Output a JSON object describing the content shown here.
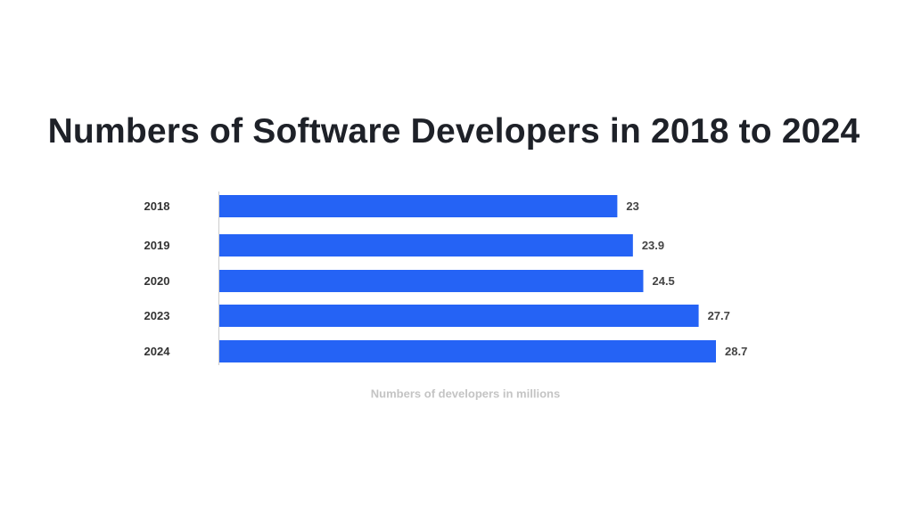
{
  "chart_data": {
    "type": "bar",
    "orientation": "horizontal",
    "title": "Numbers of Software Developers in 2018 to 2024",
    "xlabel": "Numbers of developers in millions",
    "ylabel": "",
    "categories": [
      "2018",
      "2019",
      "2020",
      "2023",
      "2024"
    ],
    "values": [
      23,
      23.9,
      24.5,
      27.7,
      28.7
    ],
    "value_labels": [
      "23",
      "23.9",
      "24.5",
      "27.7",
      "28.7"
    ],
    "xlim": [
      0,
      28.7
    ],
    "grid": false,
    "legend": "none",
    "bar_color": "#2563f5",
    "axis_color": "#cccccc"
  }
}
